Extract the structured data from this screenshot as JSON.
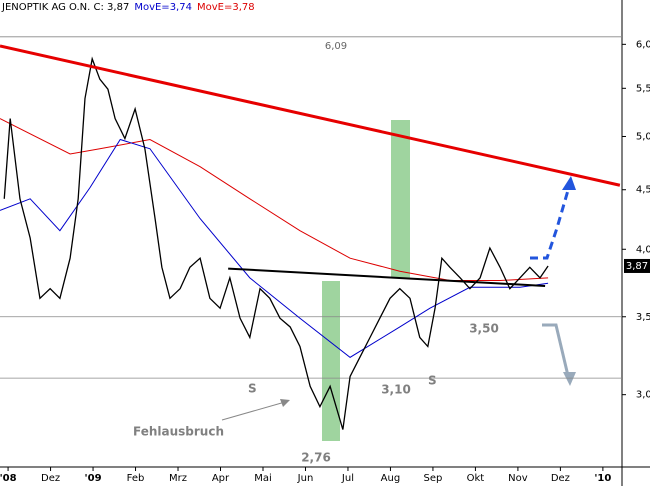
{
  "chart_data": {
    "type": "line",
    "log_scale": true,
    "xlim": [
      -0.19,
      14.45
    ],
    "ylim": [
      2.6,
      6.55
    ],
    "xticks": [
      {
        "value": 0,
        "label": "'08"
      },
      {
        "value": 1,
        "label": "Dez"
      },
      {
        "value": 2,
        "label": "'09"
      },
      {
        "value": 3,
        "label": "Feb"
      },
      {
        "value": 4,
        "label": "Mrz"
      },
      {
        "value": 5,
        "label": "Apr"
      },
      {
        "value": 6,
        "label": "Mai"
      },
      {
        "value": 7,
        "label": "Jun"
      },
      {
        "value": 8,
        "label": "Jul"
      },
      {
        "value": 9,
        "label": "Aug"
      },
      {
        "value": 10,
        "label": "Sep"
      },
      {
        "value": 11,
        "label": "Okt"
      },
      {
        "value": 12,
        "label": "Nov"
      },
      {
        "value": 13,
        "label": "Dez"
      },
      {
        "value": 14,
        "label": "'10"
      }
    ],
    "yticks": [
      {
        "value": 3,
        "label": "3,00"
      },
      {
        "value": 3.5,
        "label": "3,50"
      },
      {
        "value": 4,
        "label": "4,00"
      },
      {
        "value": 4.5,
        "label": "4,50"
      },
      {
        "value": 5,
        "label": "5,00"
      },
      {
        "value": 5.5,
        "label": "5,50"
      },
      {
        "value": 6,
        "label": "6,00"
      }
    ],
    "series": [
      {
        "name": "JENOPTIK AG O.N. C: 3,87",
        "color": "#000000",
        "x": [
          -0.09,
          0.05,
          0.28,
          0.52,
          0.75,
          0.99,
          1.22,
          1.46,
          1.65,
          1.81,
          1.98,
          2.16,
          2.35,
          2.52,
          2.75,
          2.99,
          3.22,
          3.46,
          3.62,
          3.81,
          4.05,
          4.28,
          4.52,
          4.75,
          4.99,
          5.22,
          5.46,
          5.69,
          5.93,
          6.16,
          6.4,
          6.64,
          6.87,
          7.11,
          7.34,
          7.58,
          7.88,
          8.05,
          8.28,
          8.52,
          8.75,
          8.99,
          9.22,
          9.46,
          9.69,
          9.88,
          10.05,
          10.21,
          10.4,
          10.64,
          10.87,
          11.11,
          11.34,
          11.58,
          11.81,
          12.05,
          12.28,
          12.52,
          12.71
        ],
        "values": [
          4.42,
          5.18,
          4.42,
          4.09,
          3.63,
          3.7,
          3.63,
          3.93,
          4.42,
          5.39,
          5.83,
          5.6,
          5.49,
          5.18,
          4.98,
          5.28,
          4.88,
          4.25,
          3.86,
          3.63,
          3.7,
          3.86,
          3.93,
          3.63,
          3.56,
          3.78,
          3.49,
          3.36,
          3.7,
          3.63,
          3.49,
          3.43,
          3.3,
          3.05,
          2.93,
          3.05,
          2.8,
          3.11,
          3.23,
          3.36,
          3.49,
          3.63,
          3.7,
          3.63,
          3.36,
          3.3,
          3.56,
          3.93,
          3.86,
          3.78,
          3.7,
          3.78,
          4.01,
          3.86,
          3.7,
          3.78,
          3.86,
          3.78,
          3.87
        ]
      },
      {
        "name": "MovE=3,74",
        "color": "#0000cc",
        "x": [
          -0.19,
          0.52,
          1.22,
          1.93,
          2.64,
          3.34,
          4.52,
          5.69,
          6.87,
          8.05,
          9.22,
          9.93,
          10.87,
          12.05,
          12.71
        ],
        "values": [
          4.32,
          4.42,
          4.15,
          4.52,
          4.97,
          4.88,
          4.25,
          3.78,
          3.49,
          3.23,
          3.43,
          3.56,
          3.71,
          3.71,
          3.74
        ]
      },
      {
        "name": "MovE=3,78",
        "color": "#dd0000",
        "x": [
          -0.19,
          1.46,
          2.16,
          3.34,
          4.52,
          5.69,
          6.87,
          8.05,
          9.22,
          10.4,
          11.58,
          12.71
        ],
        "values": [
          5.18,
          4.83,
          4.88,
          4.97,
          4.71,
          4.42,
          4.15,
          3.93,
          3.83,
          3.76,
          3.76,
          3.78
        ]
      }
    ],
    "trendlines": [
      {
        "color": "#e60000",
        "x": [
          -0.19,
          14.4
        ],
        "values": [
          5.98,
          4.54
        ]
      },
      {
        "color": "#000000",
        "x": [
          5.18,
          12.64
        ],
        "values": [
          3.85,
          3.72
        ]
      }
    ],
    "hlines": [
      {
        "value": 6.09,
        "label": "6,09"
      },
      {
        "value": 3.5,
        "label": "3,50"
      },
      {
        "value": 3.1,
        "label": "3,10"
      }
    ],
    "low_label": {
      "value": 2.76,
      "label": "2,76"
    },
    "last": {
      "value": 3.87,
      "label": "3,87"
    },
    "annotations": [
      "S",
      "S",
      "Fehlausbruch"
    ]
  }
}
